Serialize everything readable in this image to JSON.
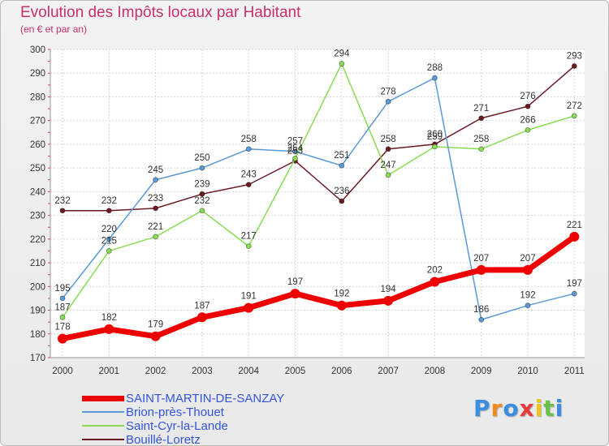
{
  "chart_data": {
    "type": "line",
    "title": "Evolution des Impôts locaux par Habitant",
    "subtitle": "(en € et par an)",
    "xlabel": "",
    "ylabel": "",
    "ylim": [
      170,
      300
    ],
    "yticks": [
      170,
      180,
      190,
      200,
      210,
      220,
      230,
      240,
      250,
      260,
      270,
      280,
      290,
      300
    ],
    "grid": true,
    "legend_position": "bottom-left",
    "x": [
      "2000",
      "2001",
      "2002",
      "2003",
      "2004",
      "2005",
      "2006",
      "2007",
      "2008",
      "2009",
      "2010",
      "2011"
    ],
    "series": [
      {
        "name": "SAINT-MARTIN-DE-SANZAY",
        "color": "#ee0000",
        "values": [
          178,
          182,
          179,
          187,
          191,
          197,
          192,
          194,
          202,
          207,
          207,
          221
        ]
      },
      {
        "name": "Brion-près-Thouet",
        "color": "#5a9ad6",
        "values": [
          195,
          220,
          245,
          250,
          258,
          257,
          251,
          278,
          288,
          186,
          192,
          197
        ]
      },
      {
        "name": "Saint-Cyr-la-Lande",
        "color": "#88dd55",
        "values": [
          187,
          215,
          221,
          232,
          217,
          254,
          294,
          247,
          259,
          258,
          266,
          272
        ]
      },
      {
        "name": "Bouillé-Loretz",
        "color": "#6b1a22",
        "values": [
          232,
          232,
          233,
          239,
          243,
          253,
          236,
          258,
          260,
          271,
          276,
          293
        ]
      }
    ]
  },
  "brand": {
    "name": "Proxiti"
  }
}
